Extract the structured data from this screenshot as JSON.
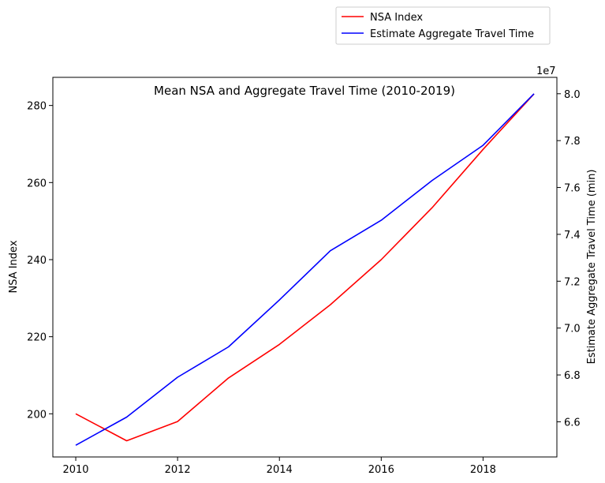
{
  "chart_data": {
    "type": "line",
    "title": "Mean NSA and Aggregate Travel Time (2010-2019)",
    "xlabel": "",
    "ylabel_left": "NSA Index",
    "ylabel_right": "Estimate Aggregate Travel Time (min)",
    "right_axis_multiplier": "1e7",
    "x": [
      2010,
      2011,
      2012,
      2013,
      2014,
      2015,
      2016,
      2017,
      2018,
      2019
    ],
    "xticks": [
      2010,
      2012,
      2014,
      2016,
      2018
    ],
    "xlim": [
      2009.55,
      2019.45
    ],
    "ylim_left": [
      188.8,
      287.3
    ],
    "yticks_left": [
      200,
      220,
      240,
      260,
      280
    ],
    "ylim_right": [
      6.45,
      8.07
    ],
    "yticks_right": [
      6.6,
      6.8,
      7.0,
      7.2,
      7.4,
      7.6,
      7.8,
      8.0
    ],
    "grid": false,
    "legend_position": "top-right, outside plot",
    "series": [
      {
        "name": "NSA Index",
        "axis": "left",
        "color": "#ff0000",
        "values": [
          200.0,
          193.0,
          198.0,
          209.3,
          218.0,
          228.3,
          240.0,
          253.5,
          268.6,
          283.0
        ]
      },
      {
        "name": "Estimate Aggregate Travel Time",
        "axis": "right",
        "color": "#0000ff",
        "values": [
          6.5,
          6.62,
          6.79,
          6.92,
          7.12,
          7.33,
          7.46,
          7.63,
          7.78,
          8.0
        ]
      }
    ]
  }
}
